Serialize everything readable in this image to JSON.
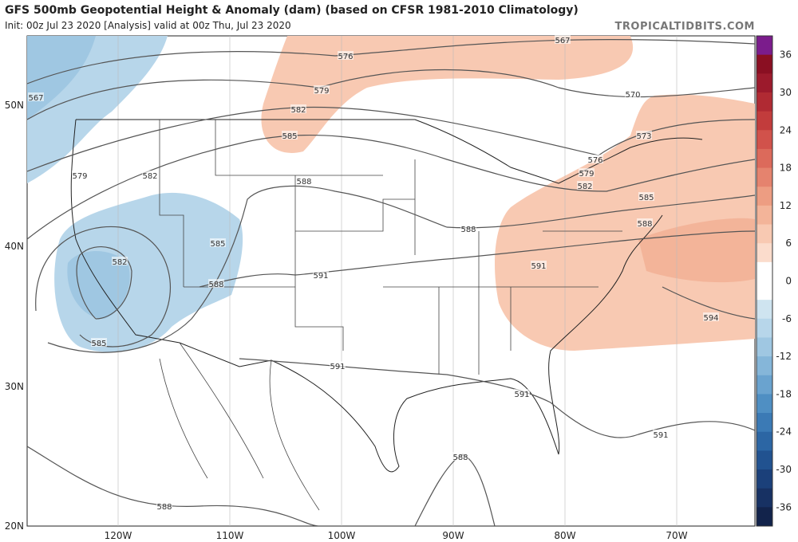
{
  "header": {
    "title": "GFS 500mb Geopotential Height & Anomaly (dam) (based on CFSR 1981-2010 Climatology)",
    "subtitle": "Init: 00z Jul 23 2020   [Analysis]   valid at 00z Thu, Jul 23 2020",
    "brand": "TROPICALTIDBITS.COM"
  },
  "map": {
    "lat_labels": [
      "50N",
      "40N",
      "30N",
      "20N"
    ],
    "lon_labels": [
      "120W",
      "110W",
      "100W",
      "90W",
      "80W",
      "70W"
    ],
    "contour_labels": [
      "567",
      "567",
      "576",
      "576",
      "579",
      "579",
      "579",
      "570",
      "573",
      "582",
      "582",
      "582",
      "582",
      "585",
      "585",
      "585",
      "585",
      "588",
      "588",
      "588",
      "588",
      "588",
      "588",
      "591",
      "591",
      "591",
      "591",
      "591",
      "594"
    ]
  },
  "colorbar": {
    "labels": [
      "36",
      "30",
      "24",
      "18",
      "12",
      "6",
      "0",
      "-6",
      "-12",
      "-18",
      "-24",
      "-30",
      "-36"
    ],
    "colors": [
      "#7b1c8c",
      "#8a0f22",
      "#9c1a2c",
      "#b02a33",
      "#c23c3c",
      "#d1524b",
      "#dc6a5b",
      "#e5836e",
      "#ed9d82",
      "#f3b499",
      "#f8c9b2",
      "#fbdccc",
      "#ffffff",
      "#ffffff",
      "#cfe4f0",
      "#b7d6ea",
      "#9fc7e2",
      "#85b6d9",
      "#6aa3cf",
      "#4f8fc3",
      "#3b7ab5",
      "#2c66a4",
      "#215290",
      "#1b407a",
      "#173163",
      "#12234b"
    ]
  }
}
